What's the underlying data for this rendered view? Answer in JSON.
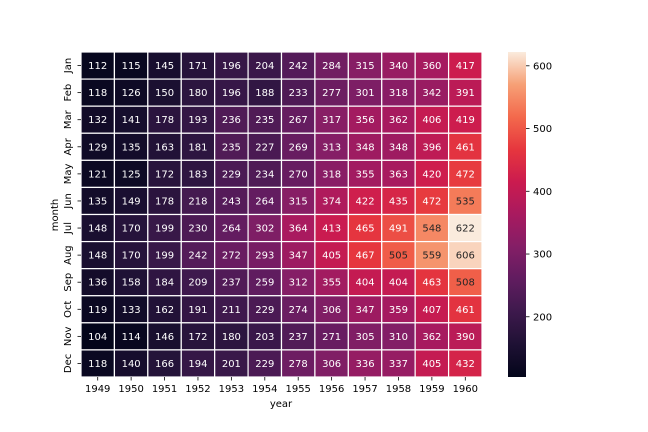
{
  "chart_data": {
    "type": "heatmap",
    "xlabel": "year",
    "ylabel": "month",
    "x": [
      "1949",
      "1950",
      "1951",
      "1952",
      "1953",
      "1954",
      "1955",
      "1956",
      "1957",
      "1958",
      "1959",
      "1960"
    ],
    "y": [
      "Jan",
      "Feb",
      "Mar",
      "Apr",
      "May",
      "Jun",
      "Jul",
      "Aug",
      "Sep",
      "Oct",
      "Nov",
      "Dec"
    ],
    "values": [
      [
        112,
        115,
        145,
        171,
        196,
        204,
        242,
        284,
        315,
        340,
        360,
        417
      ],
      [
        118,
        126,
        150,
        180,
        196,
        188,
        233,
        277,
        301,
        318,
        342,
        391
      ],
      [
        132,
        141,
        178,
        193,
        236,
        235,
        267,
        317,
        356,
        362,
        406,
        419
      ],
      [
        129,
        135,
        163,
        181,
        235,
        227,
        269,
        313,
        348,
        348,
        396,
        461
      ],
      [
        121,
        125,
        172,
        183,
        229,
        234,
        270,
        318,
        355,
        363,
        420,
        472
      ],
      [
        135,
        149,
        178,
        218,
        243,
        264,
        315,
        374,
        422,
        435,
        472,
        535
      ],
      [
        148,
        170,
        199,
        230,
        264,
        302,
        364,
        413,
        465,
        491,
        548,
        622
      ],
      [
        148,
        170,
        199,
        242,
        272,
        293,
        347,
        405,
        467,
        505,
        559,
        606
      ],
      [
        136,
        158,
        184,
        209,
        237,
        259,
        312,
        355,
        404,
        404,
        463,
        508
      ],
      [
        119,
        133,
        162,
        191,
        211,
        229,
        274,
        306,
        347,
        359,
        407,
        461
      ],
      [
        104,
        114,
        146,
        172,
        180,
        203,
        237,
        271,
        305,
        310,
        362,
        390
      ],
      [
        118,
        140,
        166,
        194,
        201,
        229,
        278,
        306,
        336,
        337,
        405,
        432
      ]
    ],
    "colormap": "rocket",
    "vmin": 104,
    "vmax": 622,
    "colorbar_ticks": [
      "200",
      "300",
      "400",
      "500",
      "600"
    ],
    "colorbar_tick_values": [
      200,
      300,
      400,
      500,
      600
    ],
    "cell_border_color": "#ffffff"
  }
}
